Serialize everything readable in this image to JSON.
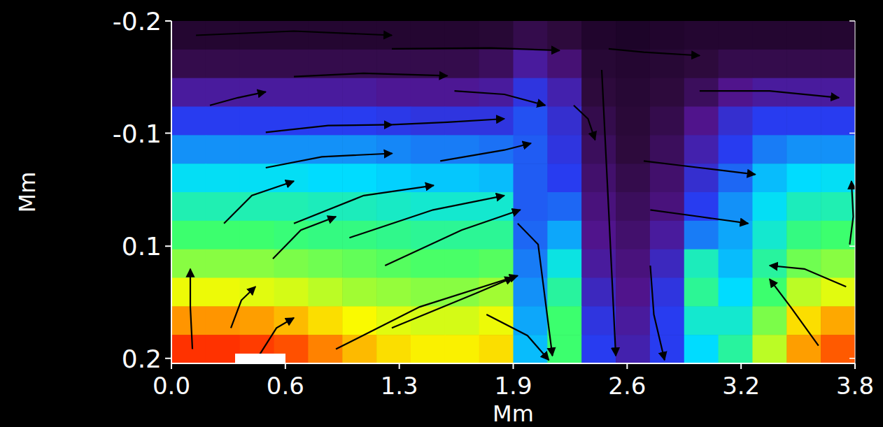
{
  "chart_data": {
    "type": "heatmap",
    "x_label": "Mm",
    "y_label": "Mm",
    "xlim": [
      0,
      3.84
    ],
    "ylim": [
      -0.2,
      0.206
    ],
    "xticks": [
      {
        "value": 0,
        "label": "0.0"
      },
      {
        "value": 0.64,
        "label": "0.6"
      },
      {
        "value": 1.28,
        "label": "1.3"
      },
      {
        "value": 1.92,
        "label": "1.9"
      },
      {
        "value": 2.56,
        "label": "2.6"
      },
      3.2,
      {
        "value": 3.84,
        "label": "3.8"
      }
    ],
    "yticks": [
      -0.2,
      {
        "value": -0.067,
        "label": "-0.1"
      },
      {
        "value": 0.067,
        "label": "0.1"
      },
      0.2
    ],
    "zlim": [
      0,
      1
    ],
    "z": [
      [
        0.05,
        0.05,
        0.05,
        0.05,
        0.05,
        0.05,
        0.05,
        0.05,
        0.05,
        0.06,
        0.1,
        0.08,
        0.04,
        0.03,
        0.04,
        0.05,
        0.05,
        0.05,
        0.05,
        0.05
      ],
      [
        0.1,
        0.1,
        0.1,
        0.1,
        0.1,
        0.1,
        0.1,
        0.1,
        0.1,
        0.12,
        0.2,
        0.15,
        0.06,
        0.05,
        0.06,
        0.08,
        0.1,
        0.1,
        0.1,
        0.1
      ],
      [
        0.2,
        0.2,
        0.2,
        0.2,
        0.2,
        0.2,
        0.19,
        0.19,
        0.19,
        0.2,
        0.28,
        0.22,
        0.08,
        0.06,
        0.08,
        0.12,
        0.18,
        0.2,
        0.2,
        0.2
      ],
      [
        0.3,
        0.3,
        0.3,
        0.3,
        0.3,
        0.3,
        0.29,
        0.28,
        0.28,
        0.28,
        0.32,
        0.26,
        0.1,
        0.07,
        0.1,
        0.18,
        0.26,
        0.3,
        0.3,
        0.3
      ],
      [
        0.38,
        0.38,
        0.38,
        0.38,
        0.38,
        0.38,
        0.37,
        0.36,
        0.36,
        0.35,
        0.33,
        0.28,
        0.12,
        0.08,
        0.12,
        0.22,
        0.3,
        0.36,
        0.38,
        0.38
      ],
      [
        0.46,
        0.46,
        0.46,
        0.46,
        0.45,
        0.45,
        0.44,
        0.43,
        0.43,
        0.42,
        0.33,
        0.3,
        0.14,
        0.1,
        0.14,
        0.26,
        0.34,
        0.42,
        0.45,
        0.46
      ],
      [
        0.53,
        0.53,
        0.53,
        0.53,
        0.52,
        0.52,
        0.51,
        0.5,
        0.5,
        0.5,
        0.33,
        0.34,
        0.16,
        0.12,
        0.16,
        0.3,
        0.38,
        0.46,
        0.52,
        0.53
      ],
      [
        0.6,
        0.6,
        0.6,
        0.59,
        0.58,
        0.58,
        0.57,
        0.56,
        0.56,
        0.56,
        0.34,
        0.4,
        0.18,
        0.14,
        0.2,
        0.36,
        0.4,
        0.5,
        0.58,
        0.6
      ],
      [
        0.66,
        0.66,
        0.66,
        0.65,
        0.64,
        0.63,
        0.62,
        0.61,
        0.61,
        0.62,
        0.36,
        0.48,
        0.2,
        0.16,
        0.24,
        0.52,
        0.42,
        0.55,
        0.64,
        0.66
      ],
      [
        0.74,
        0.74,
        0.73,
        0.72,
        0.7,
        0.68,
        0.67,
        0.66,
        0.66,
        0.68,
        0.38,
        0.55,
        0.24,
        0.18,
        0.28,
        0.56,
        0.45,
        0.6,
        0.7,
        0.73
      ],
      [
        0.86,
        0.86,
        0.85,
        0.82,
        0.78,
        0.75,
        0.73,
        0.72,
        0.72,
        0.74,
        0.4,
        0.6,
        0.28,
        0.2,
        0.3,
        0.5,
        0.5,
        0.65,
        0.78,
        0.84
      ],
      [
        0.96,
        0.96,
        0.95,
        0.93,
        0.88,
        0.82,
        0.78,
        0.76,
        0.76,
        0.78,
        0.42,
        0.6,
        0.3,
        0.22,
        0.3,
        0.45,
        0.55,
        0.7,
        0.85,
        0.92
      ]
    ],
    "streamlines": [
      {
        "x": [
          0.118,
          0.106,
          0.106
        ],
        "y": [
          0.189,
          0.139,
          0.094
        ]
      },
      {
        "x": [
          0.334,
          0.393,
          0.472
        ],
        "y": [
          0.164,
          0.131,
          0.115
        ]
      },
      {
        "x": [
          0.491,
          0.59,
          0.688
        ],
        "y": [
          0.197,
          0.164,
          0.152
        ]
      },
      {
        "x": [
          0.57,
          0.727,
          0.924
        ],
        "y": [
          0.082,
          0.048,
          0.032
        ]
      },
      {
        "x": [
          0.924,
          1.395,
          1.945
        ],
        "y": [
          0.189,
          0.139,
          0.102
        ]
      },
      {
        "x": [
          1.238,
          1.71,
          1.92
        ],
        "y": [
          0.164,
          0.123,
          0.104
        ]
      },
      {
        "x": [
          0.295,
          0.452,
          0.688
        ],
        "y": [
          0.04,
          0.007,
          -0.01
        ]
      },
      {
        "x": [
          0.688,
          1.08,
          1.473
        ],
        "y": [
          0.04,
          0.007,
          -0.005
        ]
      },
      {
        "x": [
          1.0,
          1.47,
          1.87
        ],
        "y": [
          0.057,
          0.024,
          0.007
        ]
      },
      {
        "x": [
          1.2,
          1.63,
          1.96
        ],
        "y": [
          0.09,
          0.048,
          0.024
        ]
      },
      {
        "x": [
          1.51,
          1.87,
          2.02
        ],
        "y": [
          -0.034,
          -0.047,
          -0.055
        ]
      },
      {
        "x": [
          0.53,
          0.845,
          1.24
        ],
        "y": [
          -0.026,
          -0.039,
          -0.043
        ]
      },
      {
        "x": [
          0.53,
          0.88,
          1.24
        ],
        "y": [
          -0.068,
          -0.076,
          -0.077
        ]
      },
      {
        "x": [
          1.24,
          1.55,
          1.87
        ],
        "y": [
          -0.077,
          -0.08,
          -0.084
        ]
      },
      {
        "x": [
          0.216,
          0.373,
          0.53
        ],
        "y": [
          -0.1,
          -0.109,
          -0.116
        ]
      },
      {
        "x": [
          0.688,
          1.08,
          1.55
        ],
        "y": [
          -0.134,
          -0.138,
          -0.135
        ]
      },
      {
        "x": [
          1.59,
          1.87,
          2.1
        ],
        "y": [
          -0.117,
          -0.113,
          -0.1
        ]
      },
      {
        "x": [
          0.138,
          0.688,
          1.238
        ],
        "y": [
          -0.183,
          -0.188,
          -0.183
        ]
      },
      {
        "x": [
          1.238,
          1.79,
          2.18
        ],
        "y": [
          -0.167,
          -0.168,
          -0.165
        ]
      },
      {
        "x": [
          2.456,
          2.653,
          2.967
        ],
        "y": [
          -0.167,
          -0.163,
          -0.159
        ]
      },
      {
        "x": [
          2.967,
          3.36,
          3.75
        ],
        "y": [
          -0.117,
          -0.117,
          -0.109
        ]
      },
      {
        "x": [
          3.79,
          3.556,
          3.36
        ],
        "y": [
          0.115,
          0.094,
          0.09
        ]
      },
      {
        "x": [
          3.635,
          3.478,
          3.36
        ],
        "y": [
          0.185,
          0.139,
          0.106
        ]
      },
      {
        "x": [
          2.653,
          2.967,
          3.28
        ],
        "y": [
          -0.034,
          -0.026,
          -0.018
        ]
      },
      {
        "x": [
          2.69,
          2.967,
          3.24
        ],
        "y": [
          0.024,
          0.032,
          0.04
        ]
      },
      {
        "x": [
          2.417,
          2.456,
          2.496
        ],
        "y": [
          -0.142,
          0.024,
          0.197
        ]
      },
      {
        "x": [
          2.69,
          2.71,
          2.77
        ],
        "y": [
          0.09,
          0.148,
          0.202
        ]
      },
      {
        "x": [
          1.945,
          2.06,
          2.14
        ],
        "y": [
          0.04,
          0.065,
          0.197
        ]
      },
      {
        "x": [
          1.77,
          2.0,
          2.12
        ],
        "y": [
          0.148,
          0.173,
          0.202
        ]
      },
      {
        "x": [
          3.81,
          3.83,
          3.82
        ],
        "y": [
          0.065,
          0.032,
          -0.01
        ]
      },
      {
        "x": [
          2.26,
          2.34,
          2.38
        ],
        "y": [
          -0.1,
          -0.084,
          -0.059
        ]
      }
    ]
  }
}
